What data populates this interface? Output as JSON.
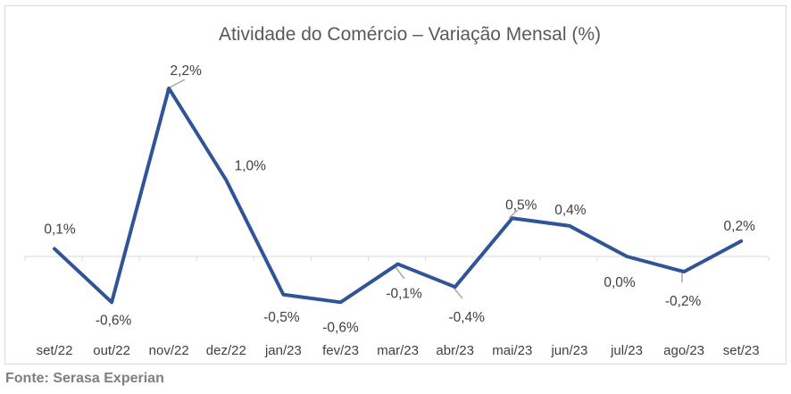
{
  "chart_data": {
    "type": "line",
    "title": "Atividade do Comércio – Variação Mensal (%)",
    "xlabel": "",
    "ylabel": "",
    "categories": [
      "set/22",
      "out/22",
      "nov/22",
      "dez/22",
      "jan/23",
      "fev/23",
      "mar/23",
      "abr/23",
      "mai/23",
      "jun/23",
      "jul/23",
      "ago/23",
      "set/23"
    ],
    "series": [
      {
        "values": [
          0.1,
          -0.6,
          2.2,
          1.0,
          -0.5,
          -0.6,
          -0.1,
          -0.4,
          0.5,
          0.4,
          0.0,
          -0.2,
          0.2
        ]
      }
    ],
    "data_labels": [
      "0,1%",
      "-0,6%",
      "2,2%",
      "1,0%",
      "-0,5%",
      "-0,6%",
      "-0,1%",
      "-0,4%",
      "0,5%",
      "0,4%",
      "0,0%",
      "-0,2%",
      "0,2%"
    ],
    "grid": false,
    "legend": "none",
    "line_color": "#2f5597"
  },
  "source": "Fonte: Serasa Experian"
}
